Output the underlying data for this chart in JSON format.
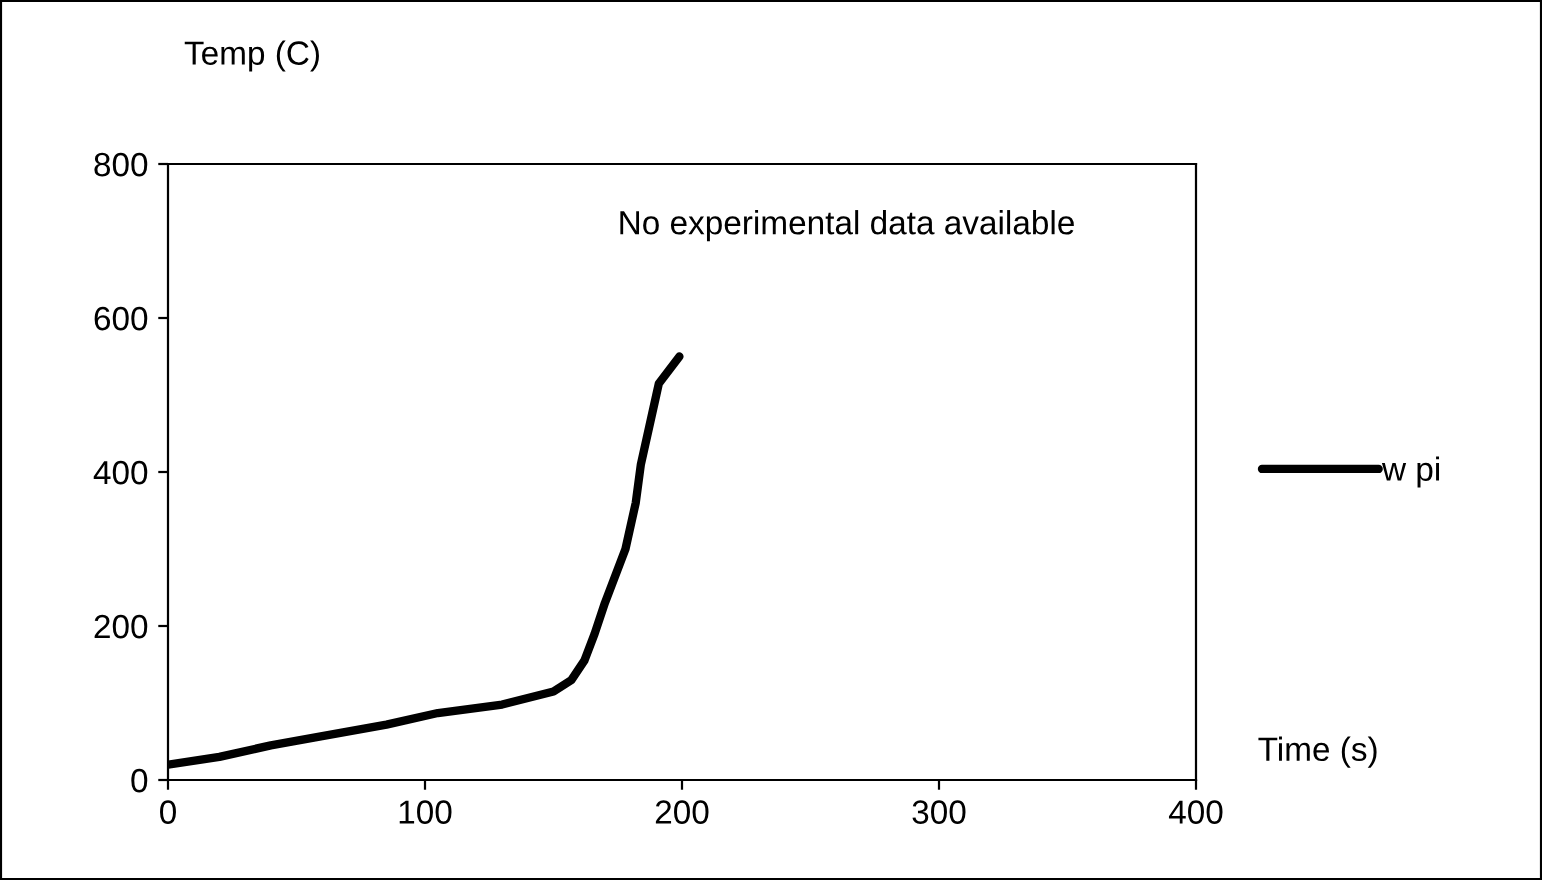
{
  "chart_data": {
    "type": "line",
    "xlabel": "Time (s)",
    "ylabel": "Temp (C)",
    "annotations": [
      "No experimental data available"
    ],
    "series": [
      {
        "name": "w pi",
        "color": "#000000",
        "x": [
          0,
          20,
          40,
          60,
          85,
          105,
          130,
          150,
          157,
          162,
          166,
          170,
          178,
          182,
          184,
          190,
          191,
          199
        ],
        "values": [
          20,
          30,
          45,
          57,
          72,
          87,
          98,
          115,
          130,
          155,
          190,
          230,
          300,
          360,
          410,
          500,
          515,
          550
        ]
      }
    ],
    "xlim": [
      0,
      400
    ],
    "xticks": [
      0,
      100,
      200,
      300,
      400
    ],
    "ylim": [
      0,
      800
    ],
    "yticks": [
      0,
      200,
      400,
      600,
      800
    ],
    "grid": false,
    "legend": "right",
    "marker": "none",
    "line_style": "solid"
  }
}
